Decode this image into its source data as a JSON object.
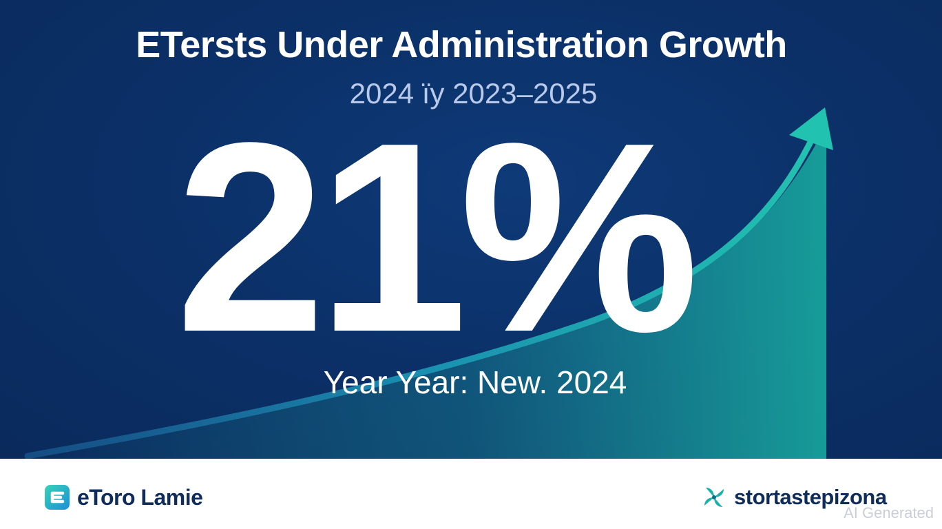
{
  "hero": {
    "title": "ETersts Under Administration Growth",
    "subtitle": "2024 ïy 2023–2025",
    "headline_value": "21%",
    "caption": "Year Year: New. 2024"
  },
  "footer": {
    "left_brand": "eToro Lamie",
    "right_brand": "stortastepizona",
    "watermark": "AI Generated"
  },
  "colors": {
    "background": "#0b2f66",
    "accent": "#1fb5a8",
    "brand_text": "#0f2c5a"
  },
  "icons": {
    "trend": "upward-trend-arrow-icon",
    "left_logo": "etoro-logo-icon",
    "right_logo": "pinwheel-logo-icon"
  }
}
